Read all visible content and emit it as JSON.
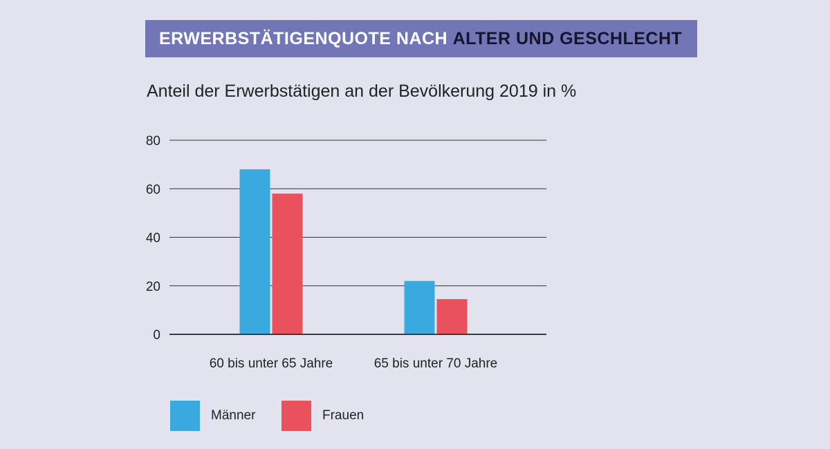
{
  "header": {
    "title_part1": "ERWERBSTÄTIGENQUOTE NACH",
    "title_part2": "ALTER UND GESCHLECHT"
  },
  "chart_data": {
    "type": "bar",
    "title": "ERWERBSTÄTIGENQUOTE NACH ALTER UND GESCHLECHT",
    "subtitle": "Anteil der Erwerbstätigen an der Bevölkerung 2019 in %",
    "categories": [
      "60 bis unter 65 Jahre",
      "65 bis unter 70 Jahre"
    ],
    "series": [
      {
        "name": "Männer",
        "color": "#39a9e0",
        "values": [
          68,
          22
        ]
      },
      {
        "name": "Frauen",
        "color": "#e9525d",
        "values": [
          58,
          14.5
        ]
      }
    ],
    "yticks": [
      0,
      20,
      40,
      60,
      80
    ],
    "ylim": [
      0,
      80
    ],
    "grid": true,
    "legend": "bottom-left"
  }
}
